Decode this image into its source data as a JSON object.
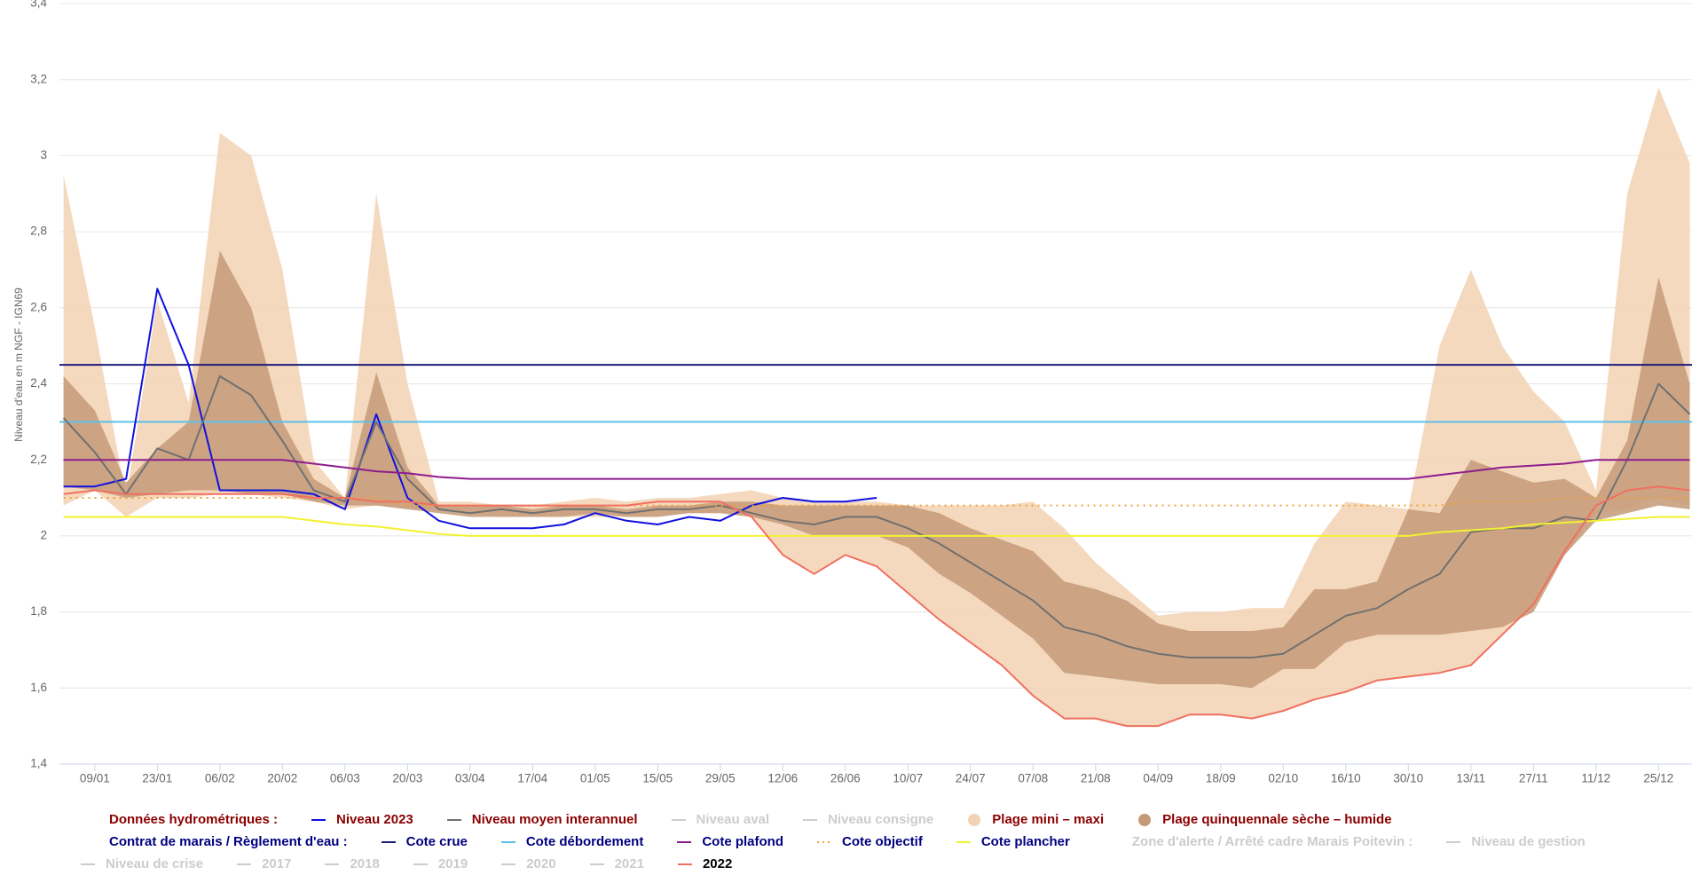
{
  "chart_data": {
    "type": "line",
    "y_label": "Niveau d'eau en m NGF - IGN69",
    "categories": [
      null,
      "09/01",
      null,
      "23/01",
      null,
      "06/02",
      null,
      "20/02",
      null,
      "06/03",
      null,
      "20/03",
      null,
      "03/04",
      null,
      "17/04",
      null,
      "01/05",
      null,
      "15/05",
      null,
      "29/05",
      null,
      "12/06",
      null,
      "26/06",
      null,
      "10/07",
      null,
      "24/07",
      null,
      "07/08",
      null,
      "21/08",
      null,
      "04/09",
      null,
      "18/09",
      null,
      "02/10",
      null,
      "16/10",
      null,
      "30/10",
      null,
      "13/11",
      null,
      "27/11",
      null,
      "11/12",
      null,
      "25/12",
      null
    ],
    "ylim": [
      1.4,
      3.4
    ],
    "yticks": [
      {
        "value": 1.4,
        "label": "1,4"
      },
      {
        "value": 1.6,
        "label": "1,6"
      },
      {
        "value": 1.8,
        "label": "1,8"
      },
      2,
      {
        "value": 2.2,
        "label": "2,2"
      },
      {
        "value": 2.4,
        "label": "2,4"
      },
      {
        "value": 2.6,
        "label": "2,6"
      },
      {
        "value": 2.8,
        "label": "2,8"
      },
      3,
      {
        "value": 3.2,
        "label": "3,2"
      },
      {
        "value": 3.4,
        "label": "3,4"
      }
    ],
    "grid": true,
    "groups": [
      {
        "title": "Données hydrométriques :",
        "title_color": "#8b0000",
        "label_color": "#8b0000",
        "items": [
          {
            "name": "Niveau 2023",
            "kind": "line",
            "color": "#1010e0",
            "values": [
              2.13,
              2.13,
              2.15,
              2.65,
              2.45,
              2.12,
              2.12,
              2.12,
              2.11,
              2.07,
              2.32,
              2.1,
              2.04,
              2.02,
              2.02,
              2.02,
              2.03,
              2.06,
              2.04,
              2.03,
              2.05,
              2.04,
              2.08,
              2.1,
              2.09,
              2.09,
              2.1,
              null,
              null,
              null,
              null,
              null,
              null,
              null,
              null,
              null,
              null,
              null,
              null,
              null,
              null,
              null,
              null,
              null,
              null,
              null,
              null,
              null,
              null,
              null,
              null,
              null,
              null
            ]
          },
          {
            "name": "Niveau moyen interannuel",
            "kind": "line",
            "color": "#707070",
            "values": [
              2.31,
              2.22,
              2.11,
              2.23,
              2.2,
              2.42,
              2.37,
              2.25,
              2.12,
              2.09,
              2.3,
              2.15,
              2.07,
              2.06,
              2.07,
              2.06,
              2.07,
              2.07,
              2.06,
              2.07,
              2.07,
              2.08,
              2.06,
              2.04,
              2.03,
              2.05,
              2.05,
              2.02,
              1.98,
              1.93,
              1.88,
              1.83,
              1.76,
              1.74,
              1.71,
              1.69,
              1.68,
              1.68,
              1.68,
              1.69,
              1.74,
              1.79,
              1.81,
              1.86,
              1.9,
              2.01,
              2.02,
              2.02,
              2.05,
              2.04,
              2.2,
              2.4,
              2.32
            ]
          },
          {
            "name": "Niveau aval",
            "kind": "line",
            "visible": false
          },
          {
            "name": "Niveau consigne",
            "kind": "line",
            "visible": false
          },
          {
            "name": "Plage mini – maxi",
            "kind": "band",
            "color": "#f3d2b4",
            "high": [
              2.95,
              2.55,
              2.1,
              2.62,
              2.35,
              3.06,
              3.0,
              2.7,
              2.2,
              2.1,
              2.9,
              2.4,
              2.09,
              2.09,
              2.08,
              2.08,
              2.09,
              2.1,
              2.09,
              2.1,
              2.1,
              2.11,
              2.12,
              2.1,
              2.09,
              2.09,
              2.09,
              2.08,
              2.08,
              2.08,
              2.08,
              2.09,
              2.02,
              1.93,
              1.86,
              1.79,
              1.8,
              1.8,
              1.81,
              1.81,
              1.98,
              2.09,
              2.08,
              2.07,
              2.5,
              2.7,
              2.5,
              2.38,
              2.3,
              2.12,
              2.9,
              3.18,
              2.98
            ],
            "low": [
              2.08,
              2.12,
              2.05,
              2.1,
              2.1,
              2.11,
              2.11,
              2.1,
              2.09,
              2.07,
              2.08,
              2.07,
              2.07,
              2.06,
              2.05,
              2.05,
              2.05,
              2.05,
              2.05,
              2.05,
              2.06,
              2.06,
              2.05,
              1.95,
              1.9,
              1.95,
              1.92,
              1.85,
              1.78,
              1.72,
              1.66,
              1.58,
              1.52,
              1.52,
              1.5,
              1.5,
              1.53,
              1.53,
              1.52,
              1.54,
              1.57,
              1.59,
              1.62,
              1.63,
              1.64,
              1.66,
              1.74,
              1.82,
              1.95,
              2.06,
              2.07,
              2.1,
              2.08
            ]
          },
          {
            "name": "Plage quinquennale sèche – humide",
            "kind": "band",
            "color": "#c49a78",
            "high": [
              2.42,
              2.33,
              2.14,
              2.23,
              2.3,
              2.75,
              2.6,
              2.3,
              2.15,
              2.1,
              2.43,
              2.18,
              2.08,
              2.08,
              2.08,
              2.07,
              2.08,
              2.08,
              2.07,
              2.08,
              2.08,
              2.09,
              2.09,
              2.08,
              2.08,
              2.08,
              2.08,
              2.08,
              2.06,
              2.02,
              1.99,
              1.96,
              1.88,
              1.86,
              1.83,
              1.77,
              1.75,
              1.75,
              1.75,
              1.76,
              1.86,
              1.86,
              1.88,
              2.07,
              2.06,
              2.2,
              2.17,
              2.14,
              2.15,
              2.1,
              2.25,
              2.68,
              2.4
            ],
            "low": [
              2.13,
              2.12,
              2.1,
              2.11,
              2.12,
              2.12,
              2.11,
              2.11,
              2.09,
              2.08,
              2.08,
              2.07,
              2.06,
              2.05,
              2.05,
              2.05,
              2.05,
              2.06,
              2.05,
              2.05,
              2.06,
              2.06,
              2.05,
              2.03,
              2.0,
              2.0,
              2.0,
              1.97,
              1.9,
              1.85,
              1.79,
              1.73,
              1.64,
              1.63,
              1.62,
              1.61,
              1.61,
              1.61,
              1.6,
              1.65,
              1.65,
              1.72,
              1.74,
              1.74,
              1.74,
              1.75,
              1.76,
              1.8,
              1.95,
              2.04,
              2.06,
              2.08,
              2.07
            ]
          }
        ]
      },
      {
        "title": "Contrat de marais / Règlement d'eau :",
        "title_color": "#000080",
        "label_color": "#000080",
        "items": [
          {
            "name": "Cote crue",
            "kind": "hline",
            "color": "#1c1c78",
            "value": 2.45
          },
          {
            "name": "Cote débordement",
            "kind": "hline",
            "color": "#5cbfea",
            "value": 2.3
          },
          {
            "name": "Cote plafond",
            "kind": "line",
            "color": "#8e1c8e",
            "values": [
              2.2,
              2.2,
              2.2,
              2.2,
              2.2,
              2.2,
              2.2,
              2.2,
              2.19,
              2.18,
              2.17,
              2.165,
              2.155,
              2.15,
              2.15,
              2.15,
              2.15,
              2.15,
              2.15,
              2.15,
              2.15,
              2.15,
              2.15,
              2.15,
              2.15,
              2.15,
              2.15,
              2.15,
              2.15,
              2.15,
              2.15,
              2.15,
              2.15,
              2.15,
              2.15,
              2.15,
              2.15,
              2.15,
              2.15,
              2.15,
              2.15,
              2.15,
              2.15,
              2.15,
              2.16,
              2.17,
              2.18,
              2.185,
              2.19,
              2.2,
              2.2,
              2.2,
              2.2
            ]
          },
          {
            "name": "Cote objectif",
            "kind": "line",
            "dash": "dotted",
            "color": "#f0a030",
            "values": [
              2.1,
              2.1,
              2.1,
              2.1,
              2.1,
              2.1,
              2.1,
              2.1,
              2.1,
              2.1,
              2.1,
              2.08,
              2.08,
              2.08,
              2.08,
              2.08,
              2.08,
              2.08,
              2.08,
              2.08,
              2.08,
              2.08,
              2.08,
              2.08,
              2.08,
              2.08,
              2.08,
              2.08,
              2.08,
              2.08,
              2.08,
              2.08,
              2.08,
              2.08,
              2.08,
              2.08,
              2.08,
              2.08,
              2.08,
              2.08,
              2.08,
              2.08,
              2.08,
              2.08,
              2.08,
              2.09,
              2.09,
              2.09,
              2.1,
              2.1,
              2.1,
              2.1,
              2.1
            ]
          },
          {
            "name": "Cote plancher",
            "kind": "line",
            "color": "#f2f230",
            "values": [
              2.05,
              2.05,
              2.05,
              2.05,
              2.05,
              2.05,
              2.05,
              2.05,
              2.04,
              2.03,
              2.025,
              2.015,
              2.005,
              2.0,
              2.0,
              2.0,
              2.0,
              2.0,
              2.0,
              2.0,
              2.0,
              2.0,
              2.0,
              2.0,
              2.0,
              2.0,
              2.0,
              2.0,
              2.0,
              2.0,
              2.0,
              2.0,
              2.0,
              2.0,
              2.0,
              2.0,
              2.0,
              2.0,
              2.0,
              2.0,
              2.0,
              2.0,
              2.0,
              2.0,
              2.01,
              2.015,
              2.02,
              2.03,
              2.035,
              2.04,
              2.045,
              2.05,
              2.05
            ]
          }
        ]
      },
      {
        "title": "Zone d'alerte / Arrêté cadre Marais Poitevin :",
        "title_color": "#cccccc",
        "label_color": "#000000",
        "items": [
          {
            "name": "Niveau de gestion",
            "kind": "line",
            "visible": false
          },
          {
            "name": "Niveau de crise",
            "kind": "line",
            "visible": false
          },
          {
            "name": "2017",
            "kind": "line",
            "visible": false
          },
          {
            "name": "2018",
            "kind": "line",
            "visible": false
          },
          {
            "name": "2019",
            "kind": "line",
            "visible": false
          },
          {
            "name": "2020",
            "kind": "line",
            "visible": false
          },
          {
            "name": "2021",
            "kind": "line",
            "visible": false
          },
          {
            "name": "2022",
            "kind": "line",
            "color": "#f07060",
            "values": [
              2.11,
              2.12,
              2.11,
              2.11,
              2.11,
              2.11,
              2.11,
              2.11,
              2.1,
              2.1,
              2.09,
              2.09,
              2.08,
              2.08,
              2.08,
              2.08,
              2.08,
              2.08,
              2.08,
              2.09,
              2.09,
              2.09,
              2.05,
              1.95,
              1.9,
              1.95,
              1.92,
              1.85,
              1.78,
              1.72,
              1.66,
              1.58,
              1.52,
              1.52,
              1.5,
              1.5,
              1.53,
              1.53,
              1.52,
              1.54,
              1.57,
              1.59,
              1.62,
              1.63,
              1.64,
              1.66,
              1.74,
              1.82,
              1.96,
              2.08,
              2.12,
              2.13,
              2.12
            ]
          }
        ]
      }
    ]
  }
}
